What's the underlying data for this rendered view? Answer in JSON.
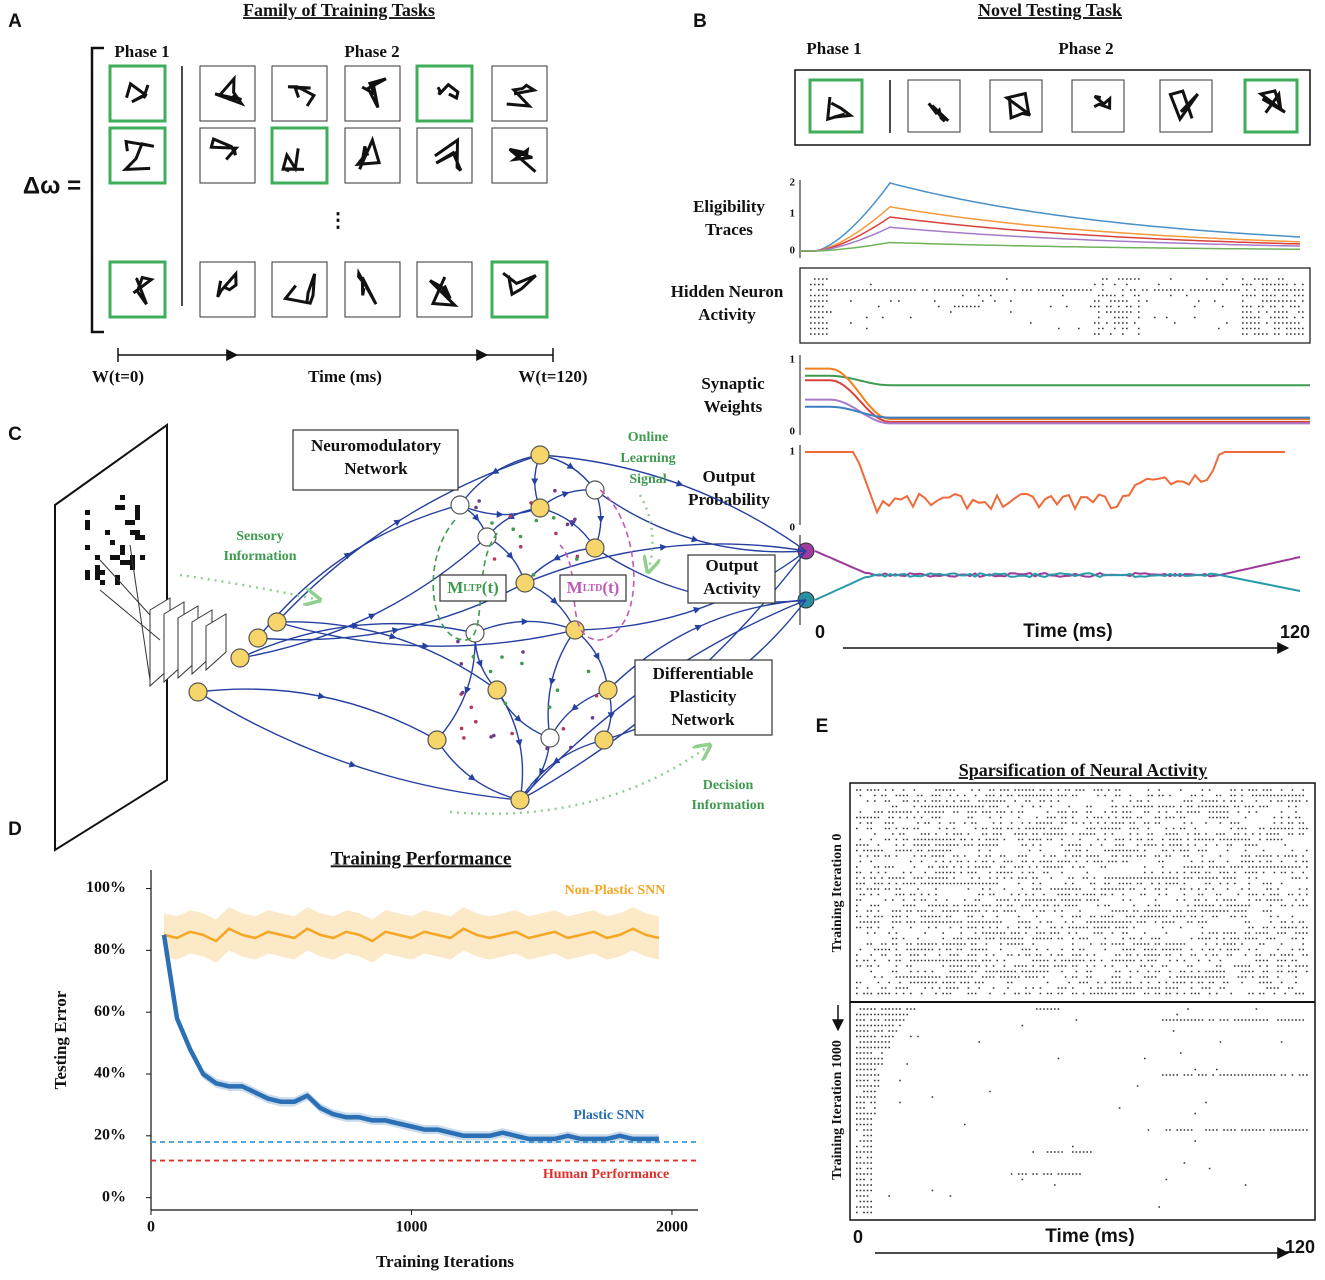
{
  "panels": {
    "a": {
      "label": "A",
      "title": "Family of Training Tasks",
      "phase_1": "Phase 1",
      "phase_2": "Phase 2",
      "equation": "Δω =",
      "ellipsis": "⋮",
      "time_start": "W(t=0)",
      "time_label": "Time (ms)",
      "time_end": "W(t=120)"
    },
    "b": {
      "label": "B",
      "title": "Novel Testing Task",
      "phase_1": "Phase 1",
      "phase_2": "Phase 2",
      "eligibility": {
        "label": [
          "Eligibility",
          "Traces"
        ],
        "ticks": [
          2,
          1,
          0
        ]
      },
      "hidden": {
        "label": [
          "Hidden Neuron",
          "Activity"
        ]
      },
      "weights": {
        "label": [
          "Synaptic",
          "Weights"
        ],
        "ticks": [
          1,
          0
        ]
      },
      "output_probability": {
        "label": [
          "Output",
          "Probability"
        ],
        "ticks": [
          1,
          0
        ]
      },
      "time_start": 0,
      "time_label": "Time (ms)",
      "time_end": 120
    },
    "c": {
      "label": "C",
      "neuromodulatory": [
        "Neuromodulatory",
        "Network"
      ],
      "online": [
        "Online",
        "Learning",
        "Signal"
      ],
      "sensory": [
        "Sensory",
        "Information"
      ],
      "m_ltp": {
        "symbol": "M",
        "sub": "LTP",
        "arg": "(t)"
      },
      "m_ltd": {
        "symbol": "M",
        "sub": "LTD",
        "arg": "(t)"
      },
      "output_activity": [
        "Output",
        "Activity"
      ],
      "plasticity": [
        "Differentiable",
        "Plasticity",
        "Network"
      ],
      "decision": [
        "Decision",
        "Information"
      ]
    },
    "d": {
      "label": "D"
    },
    "e": {
      "label": "E",
      "title": "Sparsification of Neural Activity",
      "iteration_0": "Training Iteration 0",
      "iteration_1000": "Training Iteration 1000",
      "time_start": 0,
      "time_label": "Time (ms)",
      "time_end": 120
    }
  },
  "chart_data": {
    "type": "line",
    "title": "Training Performance",
    "x_label": "Training Iterations",
    "y_label": "Testing Error",
    "xlim": [
      0,
      2100
    ],
    "xticks": [
      0,
      1000,
      2000
    ],
    "ylim": [
      -4,
      106
    ],
    "yticks": [
      {
        "value": 0,
        "label": "0%"
      },
      {
        "value": 20,
        "label": "20%"
      },
      {
        "value": 40,
        "label": "40%"
      },
      {
        "value": 60,
        "label": "60%"
      },
      {
        "value": 80,
        "label": "80%"
      },
      {
        "value": 100,
        "label": "100%"
      }
    ],
    "x": [
      50,
      100,
      150,
      200,
      250,
      300,
      350,
      400,
      450,
      500,
      550,
      600,
      650,
      700,
      750,
      800,
      850,
      900,
      950,
      1000,
      1050,
      1100,
      1150,
      1200,
      1250,
      1300,
      1350,
      1400,
      1450,
      1500,
      1550,
      1600,
      1650,
      1700,
      1750,
      1800,
      1850,
      1900,
      1950
    ],
    "series": [
      {
        "name": "Non-Plastic SNN",
        "color": "#f5a623",
        "band": 7,
        "values": [
          85,
          84,
          86,
          85,
          83,
          87,
          85,
          84,
          86,
          85,
          84,
          87,
          85,
          84,
          86,
          85,
          83,
          86,
          85,
          84,
          86,
          85,
          84,
          87,
          85,
          84,
          85,
          86,
          84,
          85,
          86,
          84,
          85,
          86,
          84,
          85,
          87,
          85,
          84
        ]
      },
      {
        "name": "Plastic SNN",
        "color": "#2b6fb5",
        "band": 1.5,
        "values": [
          85,
          58,
          48,
          40,
          37,
          36,
          36,
          34,
          32,
          31,
          31,
          33,
          29,
          27,
          26,
          26,
          25,
          25,
          24,
          23,
          22,
          22,
          21,
          20,
          20,
          20,
          21,
          20,
          19,
          19,
          19,
          20,
          19,
          19,
          19,
          20,
          19,
          19,
          19
        ]
      }
    ],
    "reference_lines": [
      {
        "name": "Human Performance",
        "color": "#e0302a",
        "value": 12
      },
      {
        "color": "#3a9ad9",
        "value": 18
      }
    ]
  }
}
